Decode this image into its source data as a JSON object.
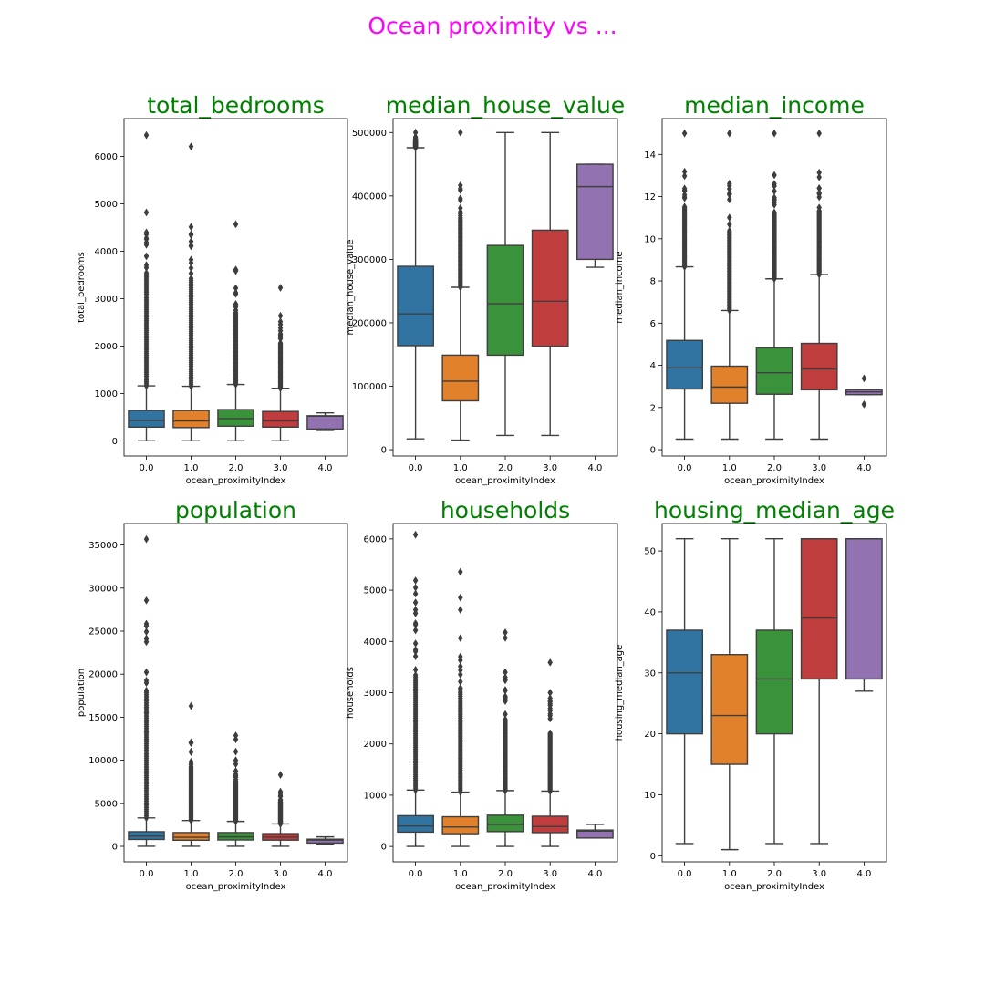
{
  "title": "Ocean proximity vs ...",
  "chart_data": [
    {
      "type": "boxplot",
      "title": "total_bedrooms",
      "xlabel": "ocean_proximityIndex",
      "ylabel": "total_bedrooms",
      "categories": [
        "0.0",
        "1.0",
        "2.0",
        "3.0",
        "4.0"
      ],
      "yticks": [
        0,
        1000,
        2000,
        3000,
        4000,
        5000,
        6000
      ],
      "ylim": [
        -320,
        6800
      ],
      "boxes": [
        {
          "whislo": 2,
          "q1": 290,
          "med": 430,
          "q3": 640,
          "whishi": 1160,
          "fliers_from": 1160,
          "fliers_max": 6450
        },
        {
          "whislo": 2,
          "q1": 280,
          "med": 420,
          "q3": 640,
          "whishi": 1150,
          "fliers_from": 1150,
          "fliers_max": 6210
        },
        {
          "whislo": 2,
          "q1": 310,
          "med": 470,
          "q3": 660,
          "whishi": 1190,
          "fliers_from": 1190,
          "fliers_max": 4570
        },
        {
          "whislo": 2,
          "q1": 290,
          "med": 420,
          "q3": 620,
          "whishi": 1110,
          "fliers_from": 1110,
          "fliers_max": 3230
        },
        {
          "whislo": 220,
          "q1": 250,
          "med": 520,
          "q3": 530,
          "whishi": 590,
          "fliers_from": null,
          "fliers_max": null
        }
      ]
    },
    {
      "type": "boxplot",
      "title": "median_house_value",
      "xlabel": "ocean_proximityIndex",
      "ylabel": "median_house_value",
      "categories": [
        "0.0",
        "1.0",
        "2.0",
        "3.0",
        "4.0"
      ],
      "yticks": [
        0,
        100000,
        200000,
        300000,
        400000,
        500000
      ],
      "ylim": [
        -10000,
        522000
      ],
      "boxes": [
        {
          "whislo": 17000,
          "q1": 164000,
          "med": 214000,
          "q3": 289000,
          "whishi": 476000,
          "fliers_from": 476000,
          "fliers_max": 500001
        },
        {
          "whislo": 15000,
          "q1": 77000,
          "med": 108000,
          "q3": 149000,
          "whishi": 256000,
          "fliers_from": 256000,
          "fliers_max": 500001
        },
        {
          "whislo": 22500,
          "q1": 149000,
          "med": 230000,
          "q3": 322000,
          "whishi": 500001,
          "fliers_from": null,
          "fliers_max": null
        },
        {
          "whislo": 22500,
          "q1": 163000,
          "med": 234000,
          "q3": 346000,
          "whishi": 500001,
          "fliers_from": null,
          "fliers_max": null
        },
        {
          "whislo": 287500,
          "q1": 300000,
          "med": 414700,
          "q3": 450000,
          "whishi": 450000,
          "fliers_from": null,
          "fliers_max": null
        }
      ]
    },
    {
      "type": "boxplot",
      "title": "median_income",
      "xlabel": "ocean_proximityIndex",
      "ylabel": "median_income",
      "categories": [
        "0.0",
        "1.0",
        "2.0",
        "3.0",
        "4.0"
      ],
      "yticks": [
        0,
        2,
        4,
        6,
        8,
        10,
        12,
        14
      ],
      "ylim": [
        -0.3,
        15.7
      ],
      "boxes": [
        {
          "whislo": 0.5,
          "q1": 2.88,
          "med": 3.88,
          "q3": 5.18,
          "whishi": 8.67,
          "fliers_from": 8.67,
          "fliers_max": 15.0
        },
        {
          "whislo": 0.5,
          "q1": 2.2,
          "med": 2.97,
          "q3": 3.96,
          "whishi": 6.6,
          "fliers_from": 6.6,
          "fliers_max": 15.0
        },
        {
          "whislo": 0.5,
          "q1": 2.63,
          "med": 3.65,
          "q3": 4.83,
          "whishi": 8.1,
          "fliers_from": 8.1,
          "fliers_max": 15.0
        },
        {
          "whislo": 0.5,
          "q1": 2.84,
          "med": 3.83,
          "q3": 5.04,
          "whishi": 8.3,
          "fliers_from": 8.3,
          "fliers_max": 15.0
        },
        {
          "whislo": 2.61,
          "q1": 2.61,
          "med": 2.74,
          "q3": 2.84,
          "whishi": 2.84,
          "fliers": [
            3.38,
            2.15
          ]
        }
      ]
    },
    {
      "type": "boxplot",
      "title": "population",
      "xlabel": "ocean_proximityIndex",
      "ylabel": "population",
      "categories": [
        "0.0",
        "1.0",
        "2.0",
        "3.0",
        "4.0"
      ],
      "yticks": [
        0,
        5000,
        10000,
        15000,
        20000,
        25000,
        30000,
        35000
      ],
      "ylim": [
        -1800,
        37500
      ],
      "boxes": [
        {
          "whislo": 5,
          "q1": 800,
          "med": 1190,
          "q3": 1700,
          "whishi": 3300,
          "fliers_from": 3300,
          "fliers_max": 35682,
          "outliers": [
            28566,
            16122,
            15507,
            13251,
            12427
          ]
        },
        {
          "whislo": 3,
          "q1": 710,
          "med": 1050,
          "q3": 1600,
          "whishi": 3000,
          "fliers_from": 3000,
          "fliers_max": 16305,
          "outliers": [
            12000,
            11000
          ]
        },
        {
          "whislo": 5,
          "q1": 740,
          "med": 1100,
          "q3": 1600,
          "whishi": 2900,
          "fliers_from": 2900,
          "fliers_max": 12873,
          "outliers": [
            12427,
            11000,
            10000
          ]
        },
        {
          "whislo": 5,
          "q1": 720,
          "med": 1070,
          "q3": 1480,
          "whishi": 2600,
          "fliers_from": 2600,
          "fliers_max": 8300
        },
        {
          "whislo": 260,
          "q1": 380,
          "med": 720,
          "q3": 830,
          "whishi": 1100,
          "fliers_from": null,
          "fliers_max": null
        }
      ]
    },
    {
      "type": "boxplot",
      "title": "households",
      "xlabel": "ocean_proximityIndex",
      "ylabel": "households",
      "categories": [
        "0.0",
        "1.0",
        "2.0",
        "3.0",
        "4.0"
      ],
      "yticks": [
        0,
        1000,
        2000,
        3000,
        4000,
        5000,
        6000
      ],
      "ylim": [
        -300,
        6300
      ],
      "boxes": [
        {
          "whislo": 2,
          "q1": 280,
          "med": 400,
          "q3": 600,
          "whishi": 1100,
          "fliers_from": 1100,
          "fliers_max": 6082,
          "outliers": [
            5189,
            5050,
            4930,
            4760
          ]
        },
        {
          "whislo": 2,
          "q1": 250,
          "med": 380,
          "q3": 580,
          "whishi": 1060,
          "fliers_from": 1060,
          "fliers_max": 5358,
          "outliers": [
            4855,
            4616
          ]
        },
        {
          "whislo": 2,
          "q1": 290,
          "med": 430,
          "q3": 610,
          "whishi": 1090,
          "fliers_from": 1090,
          "fliers_max": 4176,
          "outliers": [
            4070,
            3400
          ]
        },
        {
          "whislo": 2,
          "q1": 270,
          "med": 390,
          "q3": 590,
          "whishi": 1080,
          "fliers_from": 1080,
          "fliers_max": 3589,
          "outliers": [
            3000
          ]
        },
        {
          "whislo": 165,
          "q1": 165,
          "med": 300,
          "q3": 320,
          "whishi": 430,
          "fliers_from": null,
          "fliers_max": null
        }
      ]
    },
    {
      "type": "boxplot",
      "title": "housing_median_age",
      "xlabel": "ocean_proximityIndex",
      "ylabel": "housing_median_age",
      "categories": [
        "0.0",
        "1.0",
        "2.0",
        "3.0",
        "4.0"
      ],
      "yticks": [
        0,
        10,
        20,
        30,
        40,
        50
      ],
      "ylim": [
        -1,
        54.5
      ],
      "boxes": [
        {
          "whislo": 2,
          "q1": 20,
          "med": 30,
          "q3": 37,
          "whishi": 52,
          "fliers_from": null,
          "fliers_max": null
        },
        {
          "whislo": 1,
          "q1": 15,
          "med": 23,
          "q3": 33,
          "whishi": 52,
          "fliers_from": null,
          "fliers_max": null
        },
        {
          "whislo": 2,
          "q1": 20,
          "med": 29,
          "q3": 37,
          "whishi": 52,
          "fliers_from": null,
          "fliers_max": null
        },
        {
          "whislo": 2,
          "q1": 29,
          "med": 39,
          "q3": 52,
          "whishi": 52,
          "fliers_from": null,
          "fliers_max": null
        },
        {
          "whislo": 27,
          "q1": 29,
          "med": 52,
          "q3": 52,
          "whishi": 52,
          "fliers_from": null,
          "fliers_max": null
        }
      ]
    }
  ],
  "colors": {
    "title": "#ff00ff",
    "subtitle": "#008000",
    "boxes": [
      "#3274a1",
      "#e1812c",
      "#3a923a",
      "#c03d3e",
      "#9372b2"
    ],
    "lines": "#3f3f3f"
  }
}
